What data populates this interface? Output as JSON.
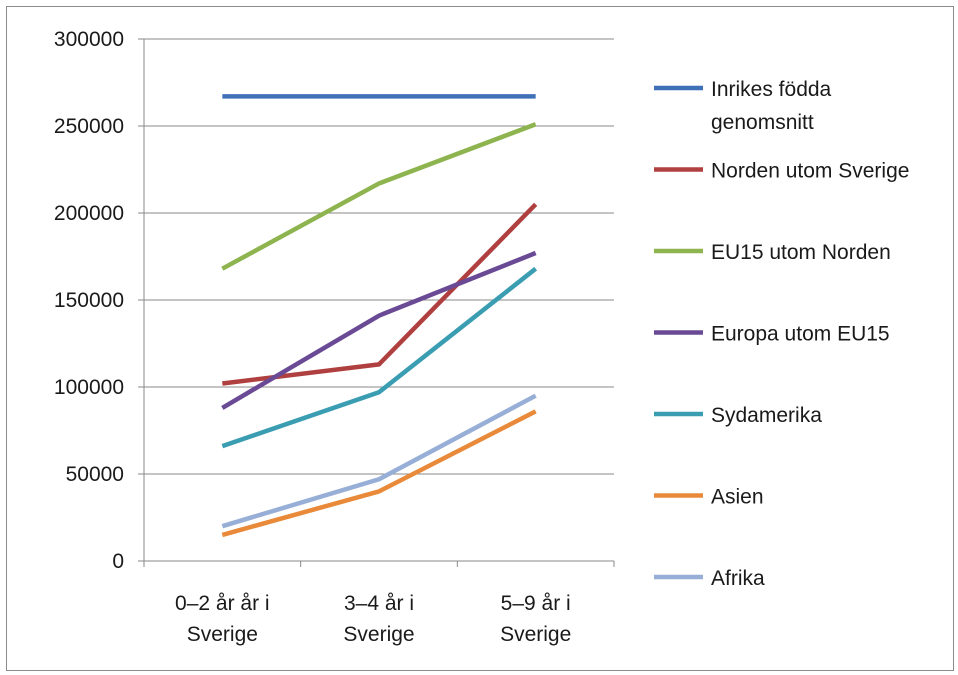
{
  "chart_data": {
    "type": "line",
    "title": "",
    "xlabel": "",
    "ylabel": "",
    "categories": [
      [
        "0–2 år år i",
        "Sverige"
      ],
      [
        "3–4 år i",
        "Sverige"
      ],
      [
        "5–9 år i",
        "Sverige"
      ]
    ],
    "ylim": [
      0,
      300000
    ],
    "yticks": [
      0,
      50000,
      100000,
      150000,
      200000,
      250000,
      300000
    ],
    "ytick_labels": [
      "0",
      "50000",
      "100000",
      "150000",
      "200000",
      "250000",
      "300000"
    ],
    "grid": "horizontal",
    "legend_position": "right",
    "series": [
      {
        "name": [
          "Inrikes födda",
          "genomsnitt"
        ],
        "color": "#4070b8",
        "values": [
          267000,
          267000,
          267000
        ]
      },
      {
        "name": [
          "Norden utom Sverige"
        ],
        "color": "#b04040",
        "values": [
          102000,
          113000,
          205000
        ]
      },
      {
        "name": [
          "EU15 utom Norden"
        ],
        "color": "#8db44e",
        "values": [
          168000,
          217000,
          251000
        ]
      },
      {
        "name": [
          "Europa utom EU15"
        ],
        "color": "#6a4a95",
        "values": [
          88000,
          141000,
          177000
        ]
      },
      {
        "name": [
          "Sydamerika"
        ],
        "color": "#3a9db2",
        "values": [
          66000,
          97000,
          168000
        ]
      },
      {
        "name": [
          "Asien"
        ],
        "color": "#e88a3a",
        "values": [
          15000,
          40000,
          86000
        ]
      },
      {
        "name": [
          "Afrika"
        ],
        "color": "#97aed6",
        "values": [
          20000,
          47000,
          95000
        ]
      }
    ]
  }
}
